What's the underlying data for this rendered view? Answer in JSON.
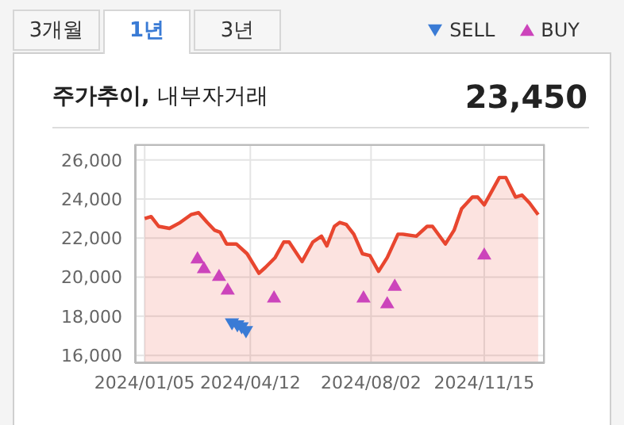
{
  "chart_data": {
    "type": "area",
    "title": "주가추이, 내부자거래",
    "annotations": [
      "3개월",
      "1년",
      "3년",
      "23,450"
    ],
    "xlim": [
      "2023-12-27",
      "2025-01-10"
    ],
    "xticks": [
      {
        "value": "2024-01-05",
        "label": "2024/01/05"
      },
      {
        "value": "2024-04-12",
        "label": "2024/04/12"
      },
      {
        "value": "2024-08-02",
        "label": "2024/08/02"
      },
      {
        "value": "2024-11-15",
        "label": "2024/11/15"
      }
    ],
    "ylim": [
      15600,
      26800
    ],
    "yticks": [
      {
        "value": 16000,
        "label": "16,000"
      },
      {
        "value": 18000,
        "label": "18,000"
      },
      {
        "value": 20000,
        "label": "20,000"
      },
      {
        "value": 22000,
        "label": "22,000"
      },
      {
        "value": 24000,
        "label": "24,000"
      },
      {
        "value": 26000,
        "label": "26,000"
      }
    ],
    "grid": true,
    "legend": "top right",
    "series": [
      {
        "color": "#e8462f",
        "x": [
          "2024-01-05",
          "2024-01-11",
          "2024-01-18",
          "2024-01-28",
          "2024-02-07",
          "2024-02-17",
          "2024-02-24",
          "2024-03-03",
          "2024-03-10",
          "2024-03-15",
          "2024-03-21",
          "2024-03-30",
          "2024-04-09",
          "2024-04-20",
          "2024-04-26",
          "2024-05-05",
          "2024-05-13",
          "2024-05-18",
          "2024-05-30",
          "2024-06-09",
          "2024-06-17",
          "2024-06-22",
          "2024-06-29",
          "2024-07-04",
          "2024-07-10",
          "2024-07-17",
          "2024-07-25",
          "2024-08-01",
          "2024-08-09",
          "2024-08-17",
          "2024-08-27",
          "2024-08-31",
          "2024-09-13",
          "2024-09-23",
          "2024-09-28",
          "2024-10-10",
          "2024-10-18",
          "2024-10-25",
          "2024-11-04",
          "2024-11-09",
          "2024-11-15",
          "2024-11-21",
          "2024-11-29",
          "2024-12-05",
          "2024-12-14",
          "2024-12-20",
          "2024-12-27",
          "2025-01-04"
        ],
        "values": [
          23000,
          23100,
          22600,
          22500,
          22800,
          23200,
          23300,
          22800,
          22400,
          22300,
          21700,
          21700,
          21200,
          20200,
          20500,
          21000,
          21800,
          21800,
          20800,
          21800,
          22100,
          21600,
          22600,
          22800,
          22700,
          22200,
          21200,
          21100,
          20300,
          21000,
          22200,
          22200,
          22100,
          22600,
          22600,
          21700,
          22400,
          23500,
          24100,
          24100,
          23700,
          24300,
          25100,
          25100,
          24100,
          24200,
          23800,
          23200
        ]
      },
      {
        "type": "scatter",
        "name": "SELL",
        "color": "#3a7bd5",
        "marker": "triangle-down",
        "x": [
          "2024-03-26",
          "2024-03-31",
          "2024-04-04",
          "2024-04-08"
        ],
        "values": [
          17600,
          17500,
          17400,
          17200
        ]
      },
      {
        "type": "scatter",
        "name": "BUY",
        "color": "#cc44bb",
        "marker": "triangle",
        "x": [
          "2024-02-23",
          "2024-02-29",
          "2024-03-14",
          "2024-03-22",
          "2024-05-04",
          "2024-07-26",
          "2024-08-17",
          "2024-08-24",
          "2024-11-15"
        ],
        "values": [
          21000,
          20500,
          20100,
          19400,
          19000,
          19000,
          18700,
          19600,
          21200
        ]
      }
    ]
  }
}
